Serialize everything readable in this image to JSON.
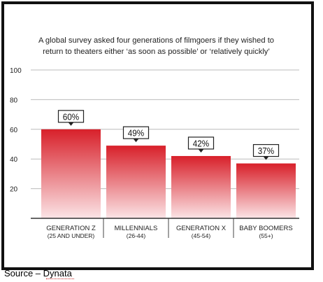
{
  "chart_data": {
    "type": "bar",
    "title_lines": [
      "A global survey asked four generations of filmgoers if they wished to",
      "return to theaters either ‘as soon as possible’ or ‘relatively quickly’"
    ],
    "categories": [
      [
        "GENERATION Z",
        "(25 AND UNDER)"
      ],
      [
        "MILLENNIALS",
        "(26-44)"
      ],
      [
        "GENERATION X",
        "(45-54)"
      ],
      [
        "BABY BOOMERS",
        "(55+)"
      ]
    ],
    "values": [
      60,
      49,
      42,
      37
    ],
    "data_labels": [
      "60%",
      "49%",
      "42%",
      "37%"
    ],
    "ylim": [
      0,
      100
    ],
    "yticks": [
      20,
      40,
      60,
      80,
      100
    ],
    "grid": true,
    "colors": {
      "bar_top": "#d8202a",
      "bar_bottom": "#fbe4e6",
      "grid": "#bbbbbb",
      "text": "#222222"
    }
  },
  "source": "Source – Dynata"
}
